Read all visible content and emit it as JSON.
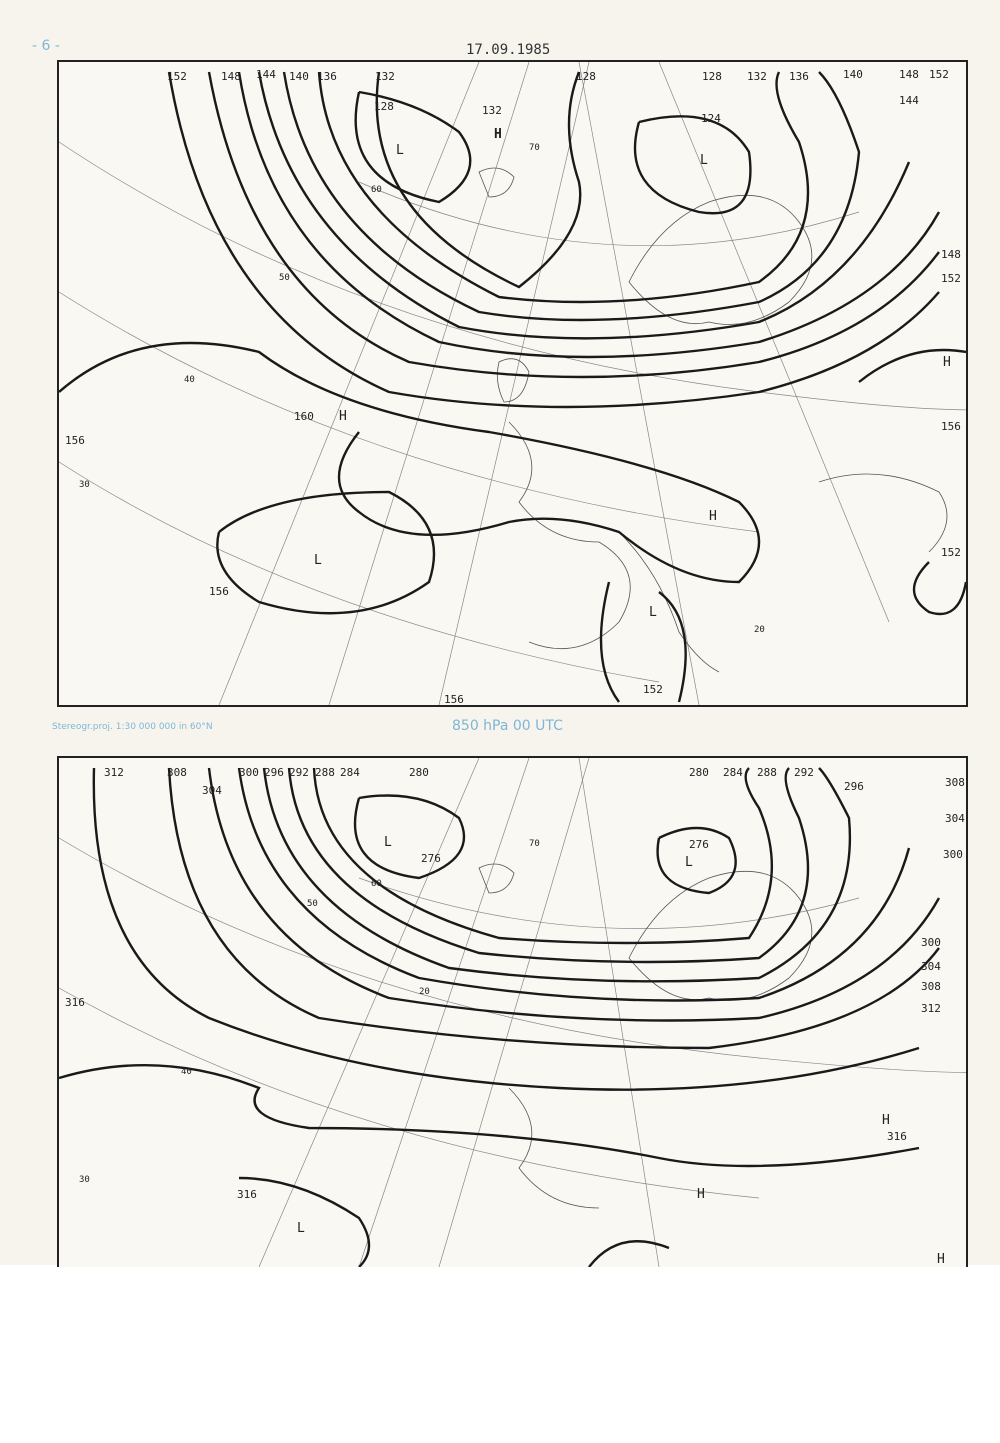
{
  "header": {
    "page_number": "- 6 -",
    "date": "17.09.1985"
  },
  "caption": {
    "projection": "Stereogr.proj. 1:30 000 000 in 60°N",
    "level": "850 hPa 00 UTC"
  },
  "map_top": {
    "contour_labels": [
      "152",
      "148",
      "144",
      "140",
      "136",
      "132",
      "128",
      "132",
      "128",
      "124",
      "128",
      "132",
      "136",
      "140",
      "148",
      "152",
      "144",
      "148",
      "152",
      "156",
      "160",
      "156",
      "156",
      "152",
      "156",
      "152"
    ],
    "latitude_labels": [
      "70",
      "60",
      "50",
      "40",
      "30",
      "20"
    ],
    "centers": [
      "L",
      "H",
      "L",
      "H",
      "H",
      "L",
      "L",
      "H"
    ]
  },
  "map_bottom": {
    "contour_labels": [
      "312",
      "308",
      "304",
      "300",
      "296",
      "292",
      "288",
      "284",
      "280",
      "276",
      "276",
      "280",
      "284",
      "288",
      "292",
      "296",
      "308",
      "304",
      "300",
      "300",
      "304",
      "308",
      "312",
      "316",
      "316",
      "316"
    ],
    "latitude_labels": [
      "70",
      "60",
      "50",
      "40",
      "30",
      "20"
    ],
    "centers": [
      "L",
      "L",
      "H",
      "H",
      "L",
      "H"
    ]
  }
}
